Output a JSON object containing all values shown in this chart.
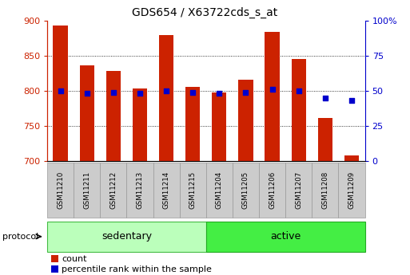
{
  "title": "GDS654 / X63722cds_s_at",
  "samples": [
    "GSM11210",
    "GSM11211",
    "GSM11212",
    "GSM11213",
    "GSM11214",
    "GSM11215",
    "GSM11204",
    "GSM11205",
    "GSM11206",
    "GSM11207",
    "GSM11208",
    "GSM11209"
  ],
  "counts": [
    893,
    836,
    828,
    803,
    879,
    805,
    798,
    816,
    884,
    845,
    761,
    708
  ],
  "percentile_ranks": [
    50,
    48,
    49,
    48,
    50,
    49,
    48,
    49,
    51,
    50,
    45,
    43
  ],
  "ylim_left": [
    700,
    900
  ],
  "ylim_right": [
    0,
    100
  ],
  "yticks_left": [
    700,
    750,
    800,
    850,
    900
  ],
  "yticks_right": [
    0,
    25,
    50,
    75,
    100
  ],
  "yticklabels_right": [
    "0",
    "25",
    "50",
    "75",
    "100%"
  ],
  "bar_color": "#cc2200",
  "dot_color": "#0000cc",
  "groups": [
    {
      "label": "sedentary",
      "start": 0,
      "end": 6,
      "color": "#bbffbb",
      "edge": "#44bb44"
    },
    {
      "label": "active",
      "start": 6,
      "end": 12,
      "color": "#44ee44",
      "edge": "#22aa22"
    }
  ],
  "protocol_label": "protocol",
  "legend_count_label": "count",
  "legend_pct_label": "percentile rank within the sample",
  "bar_width": 0.55,
  "base_value": 700,
  "gridlines": [
    750,
    800,
    850
  ],
  "tick_box_color": "#cccccc",
  "tick_box_edge": "#999999"
}
